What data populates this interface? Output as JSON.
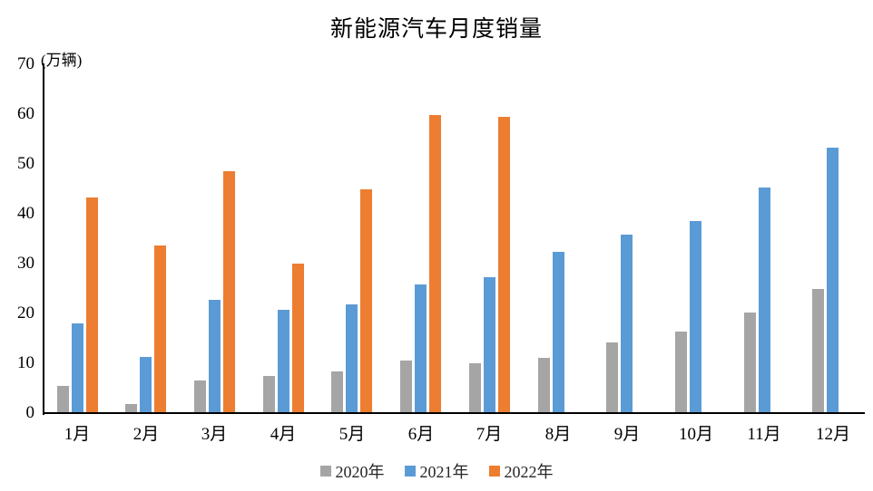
{
  "title": "新能源汽车月度销量",
  "y_axis": {
    "unit_label": "(万辆)",
    "ticks": [
      0,
      10,
      20,
      30,
      40,
      50,
      60,
      70
    ],
    "max": 70
  },
  "x_axis": {
    "labels": [
      "1月",
      "2月",
      "3月",
      "4月",
      "5月",
      "6月",
      "7月",
      "8月",
      "9月",
      "10月",
      "11月",
      "12月"
    ]
  },
  "legend": {
    "labels": [
      "2020年",
      "2021年",
      "2022年"
    ]
  },
  "colors": {
    "gray_2020": "#A5A5A5",
    "blue_2021": "#5B9BD5",
    "orange_2022": "#ED7D31",
    "axis": "#000000"
  },
  "chart_data": {
    "type": "bar",
    "title": "新能源汽车月度销量",
    "ylabel": "(万辆)",
    "xlabel": "",
    "categories": [
      "1月",
      "2月",
      "3月",
      "4月",
      "5月",
      "6月",
      "7月",
      "8月",
      "9月",
      "10月",
      "11月",
      "12月"
    ],
    "series": [
      {
        "name": "2020年",
        "color": "#A5A5A5",
        "values": [
          5.2,
          1.6,
          6.4,
          7.2,
          8.2,
          10.4,
          9.8,
          10.9,
          14.0,
          16.1,
          20.0,
          24.8
        ]
      },
      {
        "name": "2021年",
        "color": "#5B9BD5",
        "values": [
          17.9,
          11.0,
          22.6,
          20.6,
          21.7,
          25.6,
          27.1,
          32.1,
          35.7,
          38.3,
          45.0,
          53.1
        ]
      },
      {
        "name": "2022年",
        "color": "#ED7D31",
        "values": [
          43.1,
          33.4,
          48.4,
          29.9,
          44.7,
          59.6,
          59.3,
          null,
          null,
          null,
          null,
          null
        ]
      }
    ],
    "ylim": [
      0,
      70
    ],
    "yticks": [
      0,
      10,
      20,
      30,
      40,
      50,
      60,
      70
    ],
    "grid": false,
    "legend_position": "bottom"
  }
}
